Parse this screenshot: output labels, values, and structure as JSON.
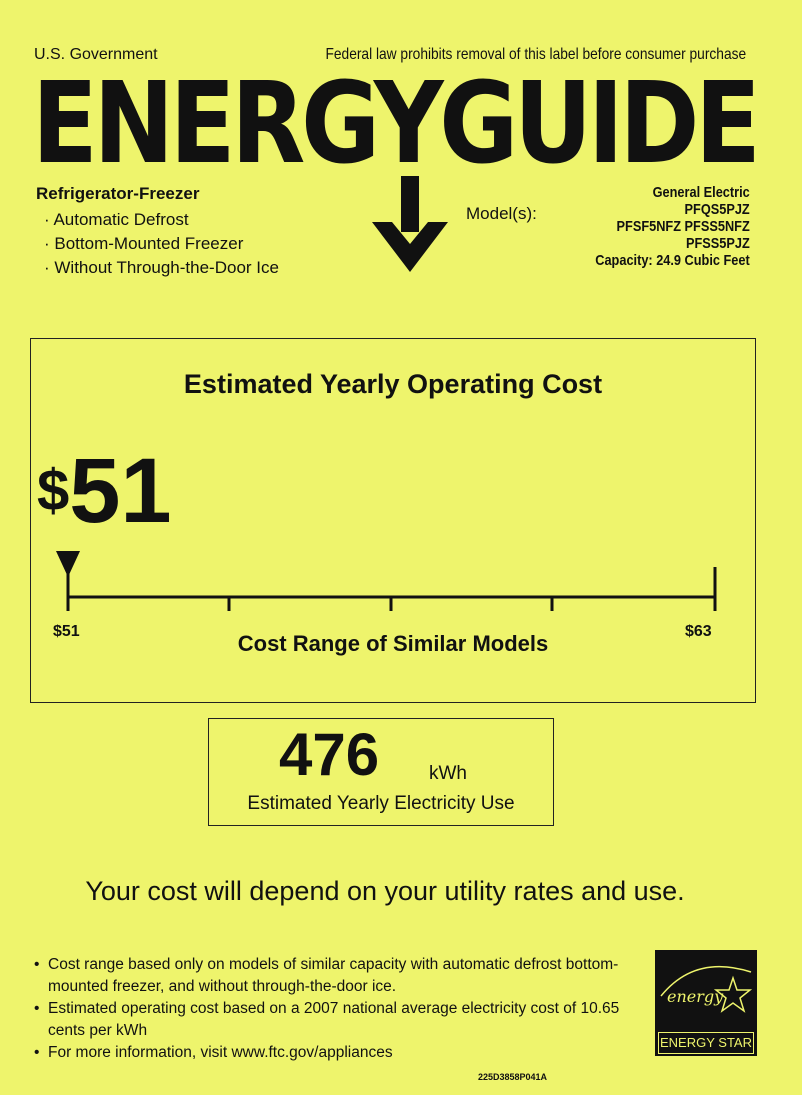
{
  "header": {
    "gov": "U.S. Government",
    "notice": "Federal law prohibits removal of this label before consumer purchase",
    "title": "ENERGYGUIDE"
  },
  "product": {
    "type": "Refrigerator-Freezer",
    "features": [
      "Automatic Defrost",
      "Bottom-Mounted Freezer",
      "Without Through-the-Door Ice"
    ]
  },
  "models": {
    "label": "Model(s):",
    "brand": "General Electric",
    "lines": [
      "PFQS5PJZ",
      "PFSF5NFZ PFSS5NFZ",
      "PFSS5PJZ"
    ],
    "capacity": "Capacity: 24.9 Cubic Feet"
  },
  "cost": {
    "heading": "Estimated Yearly Operating Cost",
    "value": "51",
    "currency": "$",
    "range_min": "$51",
    "range_max": "$63",
    "range_label": "Cost Range of Similar Models",
    "marker_value": 51,
    "min": 51,
    "max": 63
  },
  "electricity": {
    "value": "476",
    "unit": "kWh",
    "label": "Estimated Yearly Electricity Use"
  },
  "tagline": "Your cost will depend on your utility rates and use.",
  "footnotes": [
    "Cost range based only on models of similar capacity with automatic defrost bottom-mounted freezer, and without through-the-door ice.",
    "Estimated operating cost based on a 2007 national average electricity cost of 10.65 cents per kWh",
    "For more information, visit www.ftc.gov/appliances"
  ],
  "part_number": "225D3858P041A",
  "logo": {
    "script": "energy",
    "label": "ENERGY STAR"
  }
}
